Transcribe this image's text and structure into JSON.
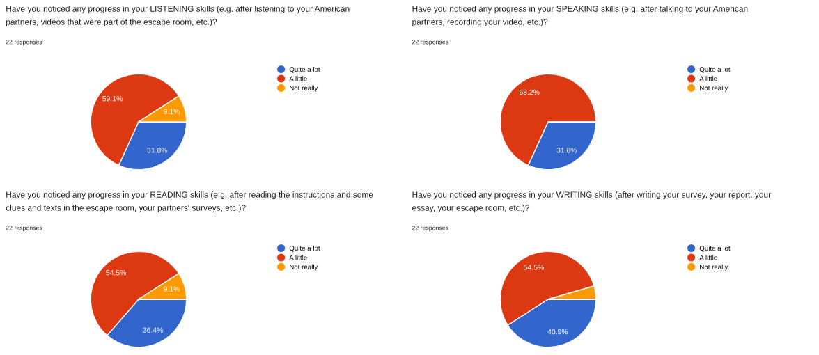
{
  "chart_data": [
    {
      "type": "pie",
      "title": "Have you noticed any progress in your LISTENING skills (e.g. after listening to your American\npartners, videos that were part of the escape room, etc.)?",
      "subtitle": "22 responses",
      "categories": [
        "Quite a lot",
        "A little",
        "Not really"
      ],
      "values": [
        31.8,
        59.1,
        9.1
      ],
      "colors": [
        "#3366cc",
        "#dc3912",
        "#ff9900"
      ],
      "value_labels": [
        "31.8%",
        "59.1%",
        "9.1%"
      ],
      "legend": "right"
    },
    {
      "type": "pie",
      "title": "Have you noticed any progress in your SPEAKING skills (e.g. after talking to your American\npartners, recording your video, etc.)?",
      "subtitle": "22 responses",
      "categories": [
        "Quite a lot",
        "A little",
        "Not really"
      ],
      "values": [
        31.8,
        68.2,
        0
      ],
      "colors": [
        "#3366cc",
        "#dc3912",
        "#ff9900"
      ],
      "value_labels": [
        "31.8%",
        "68.2%",
        null
      ],
      "legend": "right"
    },
    {
      "type": "pie",
      "title": "Have you noticed any progress in your READING skills (e.g. after reading the instructions and some\nclues and texts in the escape room, your partners' surveys, etc.)?",
      "subtitle": "22 responses",
      "categories": [
        "Quite a lot",
        "A little",
        "Not really"
      ],
      "values": [
        36.4,
        54.5,
        9.1
      ],
      "colors": [
        "#3366cc",
        "#dc3912",
        "#ff9900"
      ],
      "value_labels": [
        "36.4%",
        "54.5%",
        "9.1%"
      ],
      "legend": "right"
    },
    {
      "type": "pie",
      "title": "Have you noticed any progress in your WRITING skills (after writing your survey, your report, your\nessay, your escape room, etc.)?",
      "subtitle": "22 responses",
      "categories": [
        "Quite a lot",
        "A little",
        "Not really"
      ],
      "values": [
        40.9,
        54.5,
        4.5
      ],
      "colors": [
        "#3366cc",
        "#dc3912",
        "#ff9900"
      ],
      "value_labels": [
        "40.9%",
        "54.5%",
        null
      ],
      "legend": "right"
    }
  ]
}
